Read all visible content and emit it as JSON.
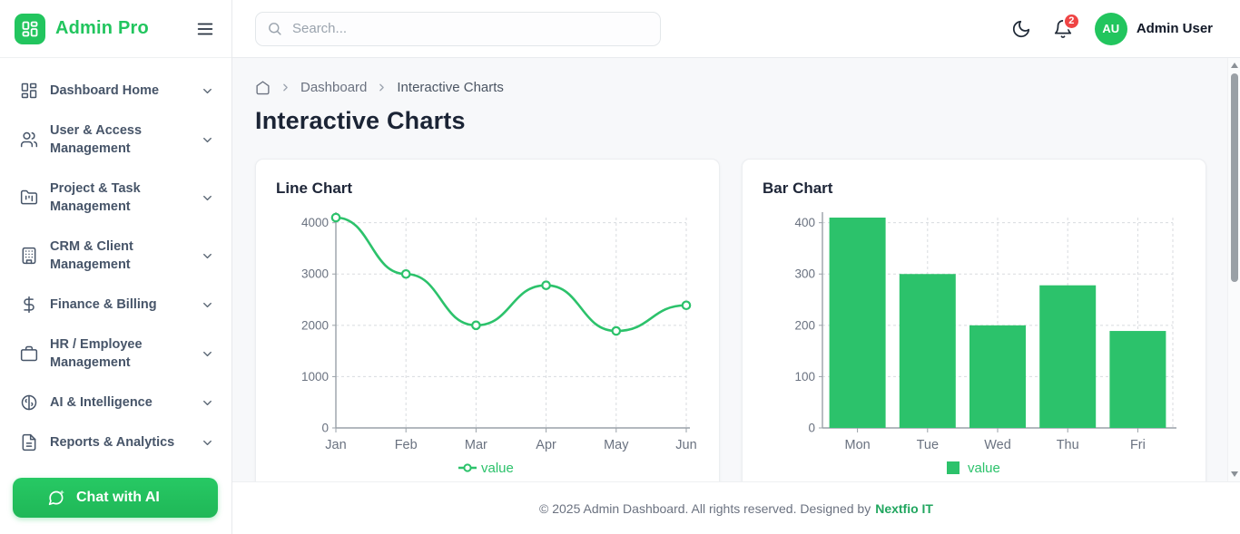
{
  "app": {
    "name": "Admin Pro"
  },
  "topbar": {
    "search": {
      "placeholder": "Search..."
    },
    "notification_count": "2",
    "user": {
      "initials": "AU",
      "name": "Admin User"
    }
  },
  "sidebar": {
    "items": [
      {
        "label": "Dashboard Home",
        "icon": "dashboard-grid-icon"
      },
      {
        "label": "User & Access Management",
        "icon": "users-icon"
      },
      {
        "label": "Project & Task Management",
        "icon": "folder-kanban-icon"
      },
      {
        "label": "CRM & Client Management",
        "icon": "building-icon"
      },
      {
        "label": "Finance & Billing",
        "icon": "dollar-icon"
      },
      {
        "label": "HR / Employee Management",
        "icon": "briefcase-icon"
      },
      {
        "label": "AI & Intelligence",
        "icon": "brain-icon"
      },
      {
        "label": "Reports & Analytics",
        "icon": "file-report-icon"
      }
    ],
    "chat_button_label": "Chat with AI"
  },
  "breadcrumb": {
    "parent": "Dashboard",
    "current": "Interactive Charts"
  },
  "page": {
    "title": "Interactive Charts"
  },
  "footer": {
    "text": "© 2025 Admin Dashboard. All rights reserved. Designed by",
    "link": "Nextfio IT"
  },
  "colors": {
    "primary_green": "#22c55e",
    "chart_green": "#2cc26b",
    "badge_red": "#ef4444"
  },
  "chart_data": [
    {
      "type": "line",
      "title": "Line Chart",
      "categories": [
        "Jan",
        "Feb",
        "Mar",
        "Apr",
        "May",
        "Jun"
      ],
      "series": [
        {
          "name": "value",
          "values": [
            4100,
            3000,
            2000,
            2780,
            1890,
            2390
          ]
        }
      ],
      "yticks": [
        0,
        1000,
        2000,
        3000,
        4000
      ],
      "ylim": [
        0,
        4100
      ],
      "xlabel": "",
      "ylabel": "",
      "grid": true,
      "legend_position": "bottom",
      "color": "#2cc26b"
    },
    {
      "type": "bar",
      "title": "Bar Chart",
      "categories": [
        "Mon",
        "Tue",
        "Wed",
        "Thu",
        "Fri"
      ],
      "series": [
        {
          "name": "value",
          "values": [
            410,
            300,
            200,
            278,
            189
          ]
        }
      ],
      "yticks": [
        0,
        100,
        200,
        300,
        400
      ],
      "ylim": [
        0,
        410
      ],
      "xlabel": "",
      "ylabel": "",
      "grid": true,
      "legend_position": "bottom",
      "color": "#2cc26b"
    }
  ]
}
